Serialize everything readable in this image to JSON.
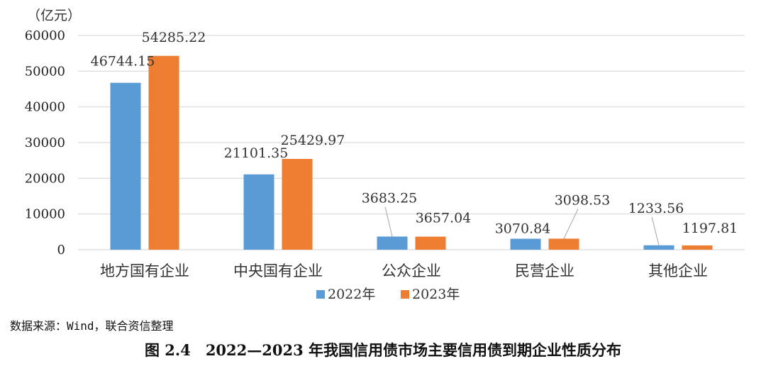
{
  "source_note": "数据来源：Wind，联合资信整理",
  "caption": "图 2.4　2022—2023 年我国信用债市场主要信用债到期企业性质分布",
  "chart_data": {
    "type": "bar",
    "unit_label": "（亿元）",
    "categories": [
      "地方国有企业",
      "中央国有企业",
      "公众企业",
      "民营企业",
      "其他企业"
    ],
    "series": [
      {
        "name": "2022年",
        "color": "#5B9BD5",
        "values": [
          46744.15,
          21101.35,
          3683.25,
          3070.84,
          1233.56
        ],
        "labels": [
          "46744.15",
          "21101.35",
          "3683.25",
          "3070.84",
          "1233.56"
        ]
      },
      {
        "name": "2023年",
        "color": "#ED7D31",
        "values": [
          54285.22,
          25429.97,
          3657.04,
          3098.53,
          1197.81
        ],
        "labels": [
          "54285.22",
          "25429.97",
          "3657.04",
          "3098.53",
          "1197.81"
        ]
      }
    ],
    "ylim": [
      0,
      60000
    ],
    "yticks": [
      0,
      10000,
      20000,
      30000,
      40000,
      50000,
      60000
    ],
    "ytick_labels": [
      "0",
      "10000",
      "20000",
      "30000",
      "40000",
      "50000",
      "60000"
    ],
    "grid": true,
    "grid_color": "#D9D9D9",
    "legend_position": "bottom"
  }
}
